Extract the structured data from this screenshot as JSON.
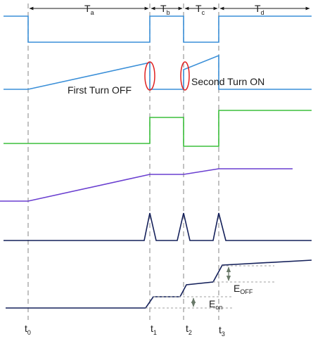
{
  "intervals": [
    {
      "main": "T",
      "sub": "a"
    },
    {
      "main": "T",
      "sub": "b"
    },
    {
      "main": "T",
      "sub": "c"
    },
    {
      "main": "T",
      "sub": "d"
    }
  ],
  "times": [
    {
      "main": "t",
      "sub": "0"
    },
    {
      "main": "t",
      "sub": "1"
    },
    {
      "main": "t",
      "sub": "2"
    },
    {
      "main": "t",
      "sub": "3"
    }
  ],
  "annotations": {
    "first_turn_off": "First Turn OFF",
    "second_turn_on": "Second Turn ON"
  },
  "energy": {
    "e_off": {
      "main": "E",
      "sub": "OFF"
    },
    "e_on": {
      "main": "E",
      "sub": "on"
    }
  },
  "colors": {
    "gate_signal": "#3a8fd8",
    "inductor_current": "#3a8fd8",
    "voltage": "#3bbf3b",
    "temperature": "#6a3fd0",
    "power_loss": "#14205a",
    "energy": "#14205a",
    "highlight": "#e02020",
    "guide": "#a0a0a0",
    "arrow": "#6a7a6a"
  }
}
